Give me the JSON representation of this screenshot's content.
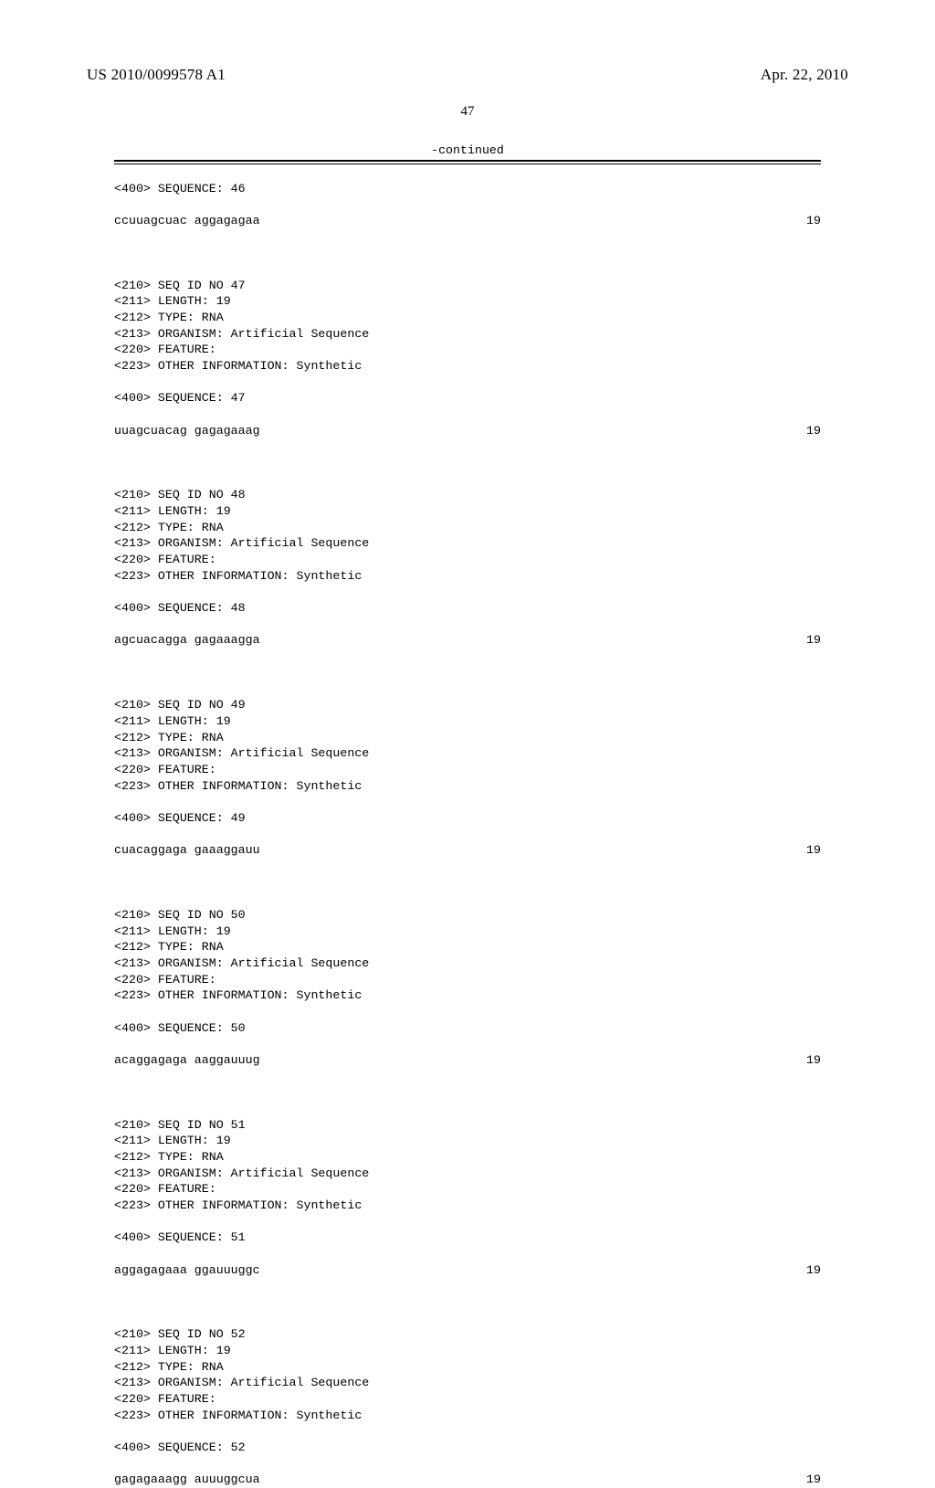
{
  "header": {
    "pub_number": "US 2010/0099578 A1",
    "pub_date": "Apr. 22, 2010"
  },
  "page_number": "47",
  "continued_label": "-continued",
  "sequences": [
    {
      "header_400": "<400> SEQUENCE: 46",
      "sequence": "ccuuagcuac aggagagaa",
      "length_value": "19"
    },
    {
      "block": [
        "<210> SEQ ID NO 47",
        "<211> LENGTH: 19",
        "<212> TYPE: RNA",
        "<213> ORGANISM: Artificial Sequence",
        "<220> FEATURE:",
        "<223> OTHER INFORMATION: Synthetic"
      ],
      "header_400": "<400> SEQUENCE: 47",
      "sequence": "uuagcuacag gagagaaag",
      "length_value": "19"
    },
    {
      "block": [
        "<210> SEQ ID NO 48",
        "<211> LENGTH: 19",
        "<212> TYPE: RNA",
        "<213> ORGANISM: Artificial Sequence",
        "<220> FEATURE:",
        "<223> OTHER INFORMATION: Synthetic"
      ],
      "header_400": "<400> SEQUENCE: 48",
      "sequence": "agcuacagga gagaaagga",
      "length_value": "19"
    },
    {
      "block": [
        "<210> SEQ ID NO 49",
        "<211> LENGTH: 19",
        "<212> TYPE: RNA",
        "<213> ORGANISM: Artificial Sequence",
        "<220> FEATURE:",
        "<223> OTHER INFORMATION: Synthetic"
      ],
      "header_400": "<400> SEQUENCE: 49",
      "sequence": "cuacaggaga gaaaggauu",
      "length_value": "19"
    },
    {
      "block": [
        "<210> SEQ ID NO 50",
        "<211> LENGTH: 19",
        "<212> TYPE: RNA",
        "<213> ORGANISM: Artificial Sequence",
        "<220> FEATURE:",
        "<223> OTHER INFORMATION: Synthetic"
      ],
      "header_400": "<400> SEQUENCE: 50",
      "sequence": "acaggagaga aaggauuug",
      "length_value": "19"
    },
    {
      "block": [
        "<210> SEQ ID NO 51",
        "<211> LENGTH: 19",
        "<212> TYPE: RNA",
        "<213> ORGANISM: Artificial Sequence",
        "<220> FEATURE:",
        "<223> OTHER INFORMATION: Synthetic"
      ],
      "header_400": "<400> SEQUENCE: 51",
      "sequence": "aggagagaaa ggauuuggc",
      "length_value": "19"
    },
    {
      "block": [
        "<210> SEQ ID NO 52",
        "<211> LENGTH: 19",
        "<212> TYPE: RNA",
        "<213> ORGANISM: Artificial Sequence",
        "<220> FEATURE:",
        "<223> OTHER INFORMATION: Synthetic"
      ],
      "header_400": "<400> SEQUENCE: 52",
      "sequence": "gagagaaagg auuuggcua",
      "length_value": "19"
    }
  ]
}
